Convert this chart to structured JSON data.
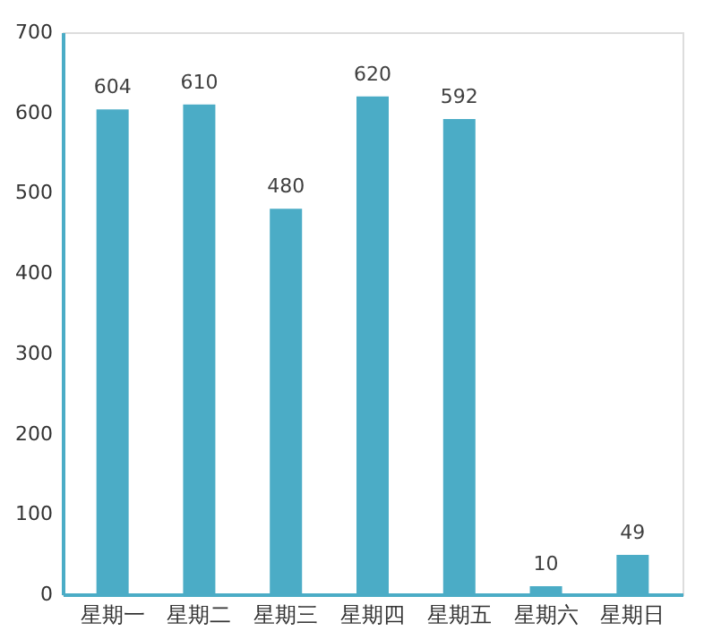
{
  "chart_data": {
    "type": "bar",
    "categories": [
      "星期一",
      "星期二",
      "星期三",
      "星期四",
      "星期五",
      "星期六",
      "星期日"
    ],
    "values": [
      604,
      610,
      480,
      620,
      592,
      10,
      49
    ],
    "color": "#4bacc6",
    "ylim": [
      0,
      700
    ],
    "yticks": [
      0,
      100,
      200,
      300,
      400,
      500,
      600,
      700
    ],
    "grid": false,
    "data_labels": true
  }
}
